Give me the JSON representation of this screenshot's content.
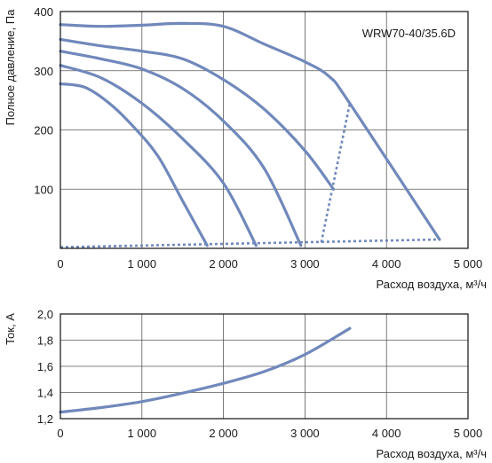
{
  "chart_data": [
    {
      "type": "line",
      "model_label": "WRW70-40/35.6D",
      "ylabel": "Полное давление, Па",
      "xlabel": "Расход воздуха, м³/ч",
      "x_ticks": [
        "0",
        "1 000",
        "2 000",
        "3 000",
        "4 000",
        "5 000"
      ],
      "y_ticks": [
        "100",
        "200",
        "300",
        "400"
      ],
      "xlim": [
        0,
        5000
      ],
      "ylim": [
        0,
        400
      ],
      "grid": true,
      "color": "#7088bb",
      "series": [
        {
          "style": "solid",
          "x": [
            0,
            500,
            1000,
            1500,
            2000,
            2500,
            3000,
            3300,
            3550,
            4650
          ],
          "y": [
            378,
            375,
            377,
            380,
            375,
            345,
            315,
            290,
            245,
            15
          ]
        },
        {
          "style": "solid",
          "x": [
            0,
            500,
            1000,
            1500,
            2000,
            2500,
            3000,
            3350
          ],
          "y": [
            353,
            342,
            333,
            320,
            285,
            235,
            165,
            100
          ]
        },
        {
          "style": "solid",
          "x": [
            0,
            500,
            1000,
            1500,
            2000,
            2500,
            2950
          ],
          "y": [
            333,
            320,
            303,
            270,
            215,
            135,
            5
          ]
        },
        {
          "style": "solid",
          "x": [
            0,
            500,
            1000,
            1500,
            2000,
            2400
          ],
          "y": [
            309,
            288,
            245,
            185,
            110,
            5
          ]
        },
        {
          "style": "solid",
          "x": [
            0,
            300,
            600,
            900,
            1200,
            1500,
            1800
          ],
          "y": [
            278,
            272,
            245,
            205,
            155,
            80,
            5
          ]
        },
        {
          "style": "dotted",
          "x": [
            0,
            4650
          ],
          "y": [
            2,
            15
          ]
        },
        {
          "style": "dotted",
          "x": [
            3200,
            3550
          ],
          "y": [
            10,
            245
          ]
        }
      ]
    },
    {
      "type": "line",
      "ylabel": "Ток, А",
      "xlabel": "Расход воздуха, м³/ч",
      "x_ticks": [
        "0",
        "1 000",
        "2 000",
        "3 000",
        "4 000",
        "5 000"
      ],
      "y_ticks": [
        "1,2",
        "1,4",
        "1,6",
        "1,8",
        "2,0"
      ],
      "xlim": [
        0,
        5000
      ],
      "ylim": [
        1.2,
        2.0
      ],
      "grid": true,
      "color": "#7088bb",
      "series": [
        {
          "style": "solid",
          "x": [
            0,
            500,
            1000,
            1500,
            2000,
            2500,
            3000,
            3550
          ],
          "y": [
            1.25,
            1.285,
            1.33,
            1.395,
            1.47,
            1.56,
            1.69,
            1.89
          ]
        }
      ]
    }
  ]
}
